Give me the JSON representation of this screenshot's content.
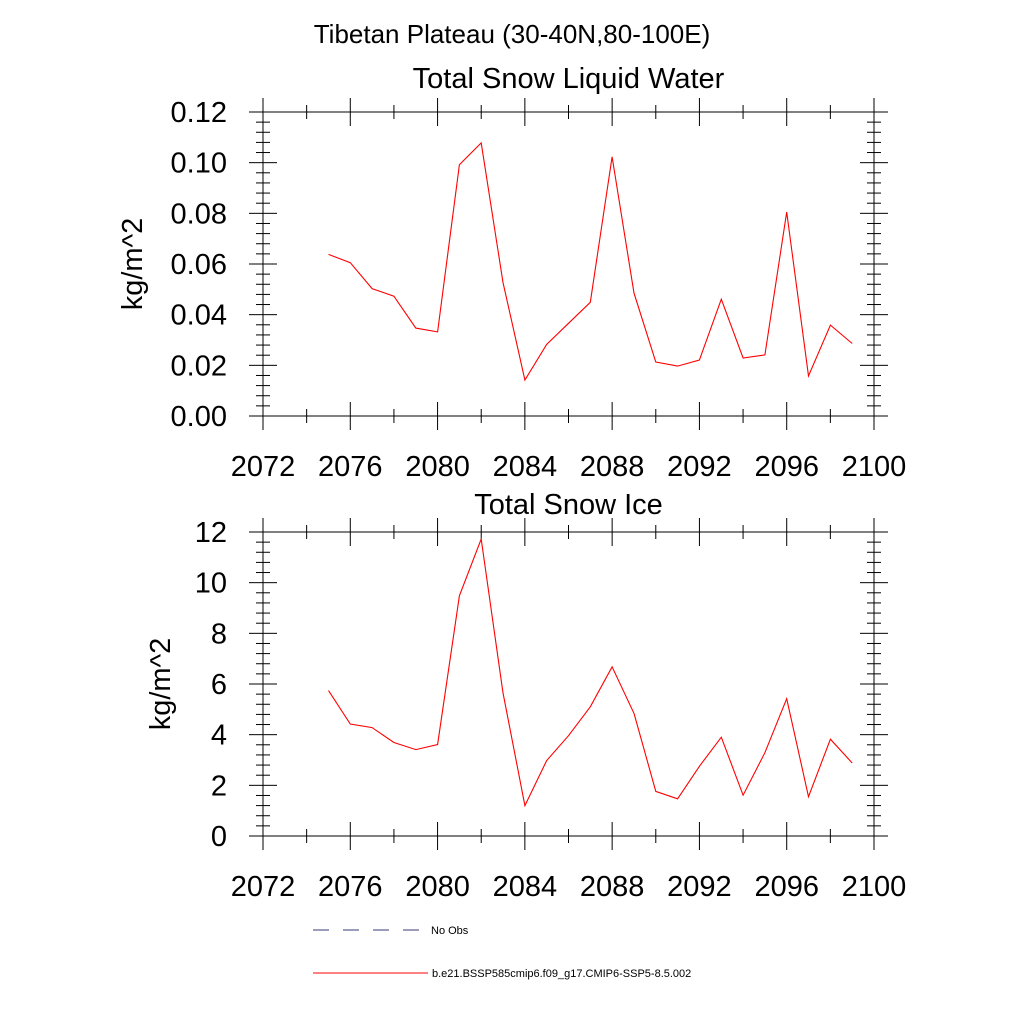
{
  "suptitle": "Tibetan Plateau (30-40N,80-100E)",
  "legend": {
    "items": [
      {
        "label": "No Obs",
        "style": "dashed",
        "color": "#3a3a7a"
      },
      {
        "label": "b.e21.BSSP585cmip6.f09_g17.CMIP6-SSP5-8.5.002",
        "style": "solid",
        "color": "#ff0000"
      }
    ]
  },
  "chart_data": [
    {
      "type": "line",
      "title": "Total Snow Liquid Water",
      "xlabel": "",
      "ylabel": "kg/m^2",
      "xlim": [
        2072,
        2100
      ],
      "ylim": [
        0,
        0.12
      ],
      "xticks": [
        2072,
        2076,
        2080,
        2084,
        2088,
        2092,
        2096,
        2100
      ],
      "xtick_labels": [
        "2072",
        "2076",
        "2080",
        "2084",
        "2088",
        "2092",
        "2096",
        "2100"
      ],
      "yticks": [
        0,
        0.02,
        0.04,
        0.06,
        0.08,
        0.1,
        0.12
      ],
      "ytick_labels": [
        "0.00",
        "0.02",
        "0.04",
        "0.06",
        "0.08",
        "0.10",
        "0.12"
      ],
      "grid": false,
      "series": [
        {
          "name": "b.e21.BSSP585cmip6.f09_g17.CMIP6-SSP5-8.5.002",
          "color": "#ff0000",
          "x": [
            2075,
            2076,
            2077,
            2078,
            2079,
            2080,
            2081,
            2082,
            2083,
            2084,
            2085,
            2086,
            2087,
            2088,
            2089,
            2090,
            2091,
            2092,
            2093,
            2094,
            2095,
            2096,
            2097,
            2098,
            2099
          ],
          "y": [
            0.0638,
            0.0605,
            0.0503,
            0.0473,
            0.0347,
            0.0332,
            0.0992,
            0.1078,
            0.0527,
            0.0142,
            0.0283,
            0.0366,
            0.0449,
            0.1023,
            0.0485,
            0.0213,
            0.0197,
            0.0221,
            0.0461,
            0.0229,
            0.0241,
            0.0805,
            0.0158,
            0.0359,
            0.0286
          ]
        }
      ]
    },
    {
      "type": "line",
      "title": "Total Snow Ice",
      "xlabel": "",
      "ylabel": "kg/m^2",
      "xlim": [
        2072,
        2100
      ],
      "ylim": [
        0,
        12
      ],
      "xticks": [
        2072,
        2076,
        2080,
        2084,
        2088,
        2092,
        2096,
        2100
      ],
      "xtick_labels": [
        "2072",
        "2076",
        "2080",
        "2084",
        "2088",
        "2092",
        "2096",
        "2100"
      ],
      "yticks": [
        0,
        2,
        4,
        6,
        8,
        10,
        12
      ],
      "ytick_labels": [
        "0",
        "2",
        "4",
        "6",
        "8",
        "10",
        "12"
      ],
      "grid": false,
      "series": [
        {
          "name": "b.e21.BSSP585cmip6.f09_g17.CMIP6-SSP5-8.5.002",
          "color": "#ff0000",
          "x": [
            2075,
            2076,
            2077,
            2078,
            2079,
            2080,
            2081,
            2082,
            2083,
            2084,
            2085,
            2086,
            2087,
            2088,
            2089,
            2090,
            2091,
            2092,
            2093,
            2094,
            2095,
            2096,
            2097,
            2098,
            2099
          ],
          "y": [
            5.74,
            4.42,
            4.28,
            3.69,
            3.41,
            3.61,
            9.48,
            11.72,
            5.65,
            1.2,
            2.98,
            3.96,
            5.1,
            6.68,
            4.84,
            1.76,
            1.47,
            2.75,
            3.9,
            1.61,
            3.29,
            5.42,
            1.55,
            3.82,
            2.88
          ]
        }
      ]
    }
  ]
}
